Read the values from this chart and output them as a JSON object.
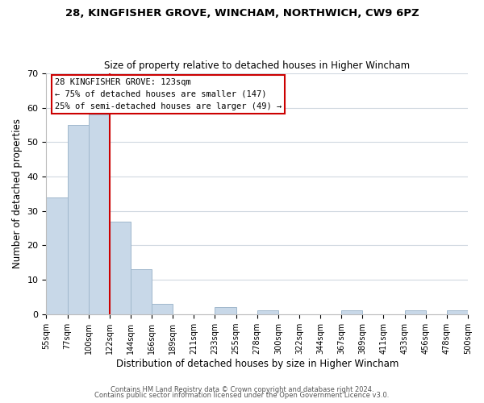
{
  "title": "28, KINGFISHER GROVE, WINCHAM, NORTHWICH, CW9 6PZ",
  "subtitle": "Size of property relative to detached houses in Higher Wincham",
  "xlabel": "Distribution of detached houses by size in Higher Wincham",
  "ylabel": "Number of detached properties",
  "bar_color": "#c8d8e8",
  "bar_edge_color": "#a0b8cc",
  "vline_color": "#cc0000",
  "vline_x": 3,
  "annotation_title": "28 KINGFISHER GROVE: 123sqm",
  "annotation_line1": "← 75% of detached houses are smaller (147)",
  "annotation_line2": "25% of semi-detached houses are larger (49) →",
  "bin_labels": [
    "55sqm",
    "77sqm",
    "100sqm",
    "122sqm",
    "144sqm",
    "166sqm",
    "189sqm",
    "211sqm",
    "233sqm",
    "255sqm",
    "278sqm",
    "300sqm",
    "322sqm",
    "344sqm",
    "367sqm",
    "389sqm",
    "411sqm",
    "433sqm",
    "456sqm",
    "478sqm",
    "500sqm"
  ],
  "bar_heights": [
    34,
    55,
    58,
    27,
    13,
    3,
    0,
    0,
    2,
    0,
    1,
    0,
    0,
    0,
    1,
    0,
    0,
    1,
    0,
    1
  ],
  "ylim": [
    0,
    70
  ],
  "yticks": [
    0,
    10,
    20,
    30,
    40,
    50,
    60,
    70
  ],
  "footer_line1": "Contains HM Land Registry data © Crown copyright and database right 2024.",
  "footer_line2": "Contains public sector information licensed under the Open Government Licence v3.0.",
  "background_color": "#ffffff",
  "grid_color": "#d0d8e0"
}
